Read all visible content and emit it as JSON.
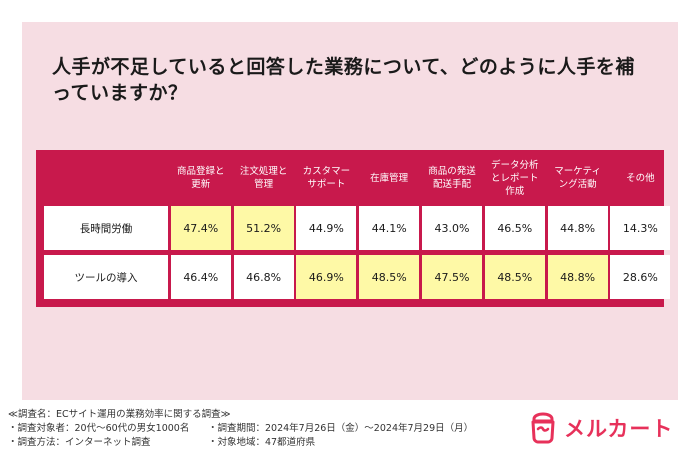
{
  "title": "人手が不足していると回答した業務について、どのように人手を補っていますか？",
  "table": {
    "columns": [
      "商品登録と\n更新",
      "注文処理と\n管理",
      "カスタマー\nサポート",
      "在庫管理",
      "商品の発送\n配送手配",
      "データ分析\nとレポート\n作成",
      "マーケティ\nング活動",
      "その他"
    ],
    "rows": [
      {
        "label": "長時間労働",
        "values": [
          "47.4%",
          "51.2%",
          "44.9%",
          "44.1%",
          "43.0%",
          "46.5%",
          "44.8%",
          "14.3%"
        ],
        "highlight": [
          true,
          true,
          false,
          false,
          false,
          false,
          false,
          false
        ]
      },
      {
        "label": "ツールの導入",
        "values": [
          "46.4%",
          "46.8%",
          "46.9%",
          "48.5%",
          "47.5%",
          "48.5%",
          "48.8%",
          "28.6%"
        ],
        "highlight": [
          false,
          false,
          true,
          true,
          true,
          true,
          true,
          false
        ]
      }
    ]
  },
  "footer": {
    "survey_name": "≪調査名：ECサイト運用の業務効率に関する調査≫",
    "target": "・調査対象者：20代〜60代の男女1000名",
    "period": "・調査期間：2024年7月26日（金）〜2024年7月29日（月）",
    "method": "・調査方法：インターネット調査",
    "region": "・対象地域：47都道府県"
  },
  "logo": {
    "text": "メルカート",
    "icon": "mercart-logo-icon",
    "color": "#e7315a"
  },
  "colors": {
    "accent": "#c8194c",
    "highlight": "#fef9a6",
    "card_bg": "#f6dde3"
  }
}
